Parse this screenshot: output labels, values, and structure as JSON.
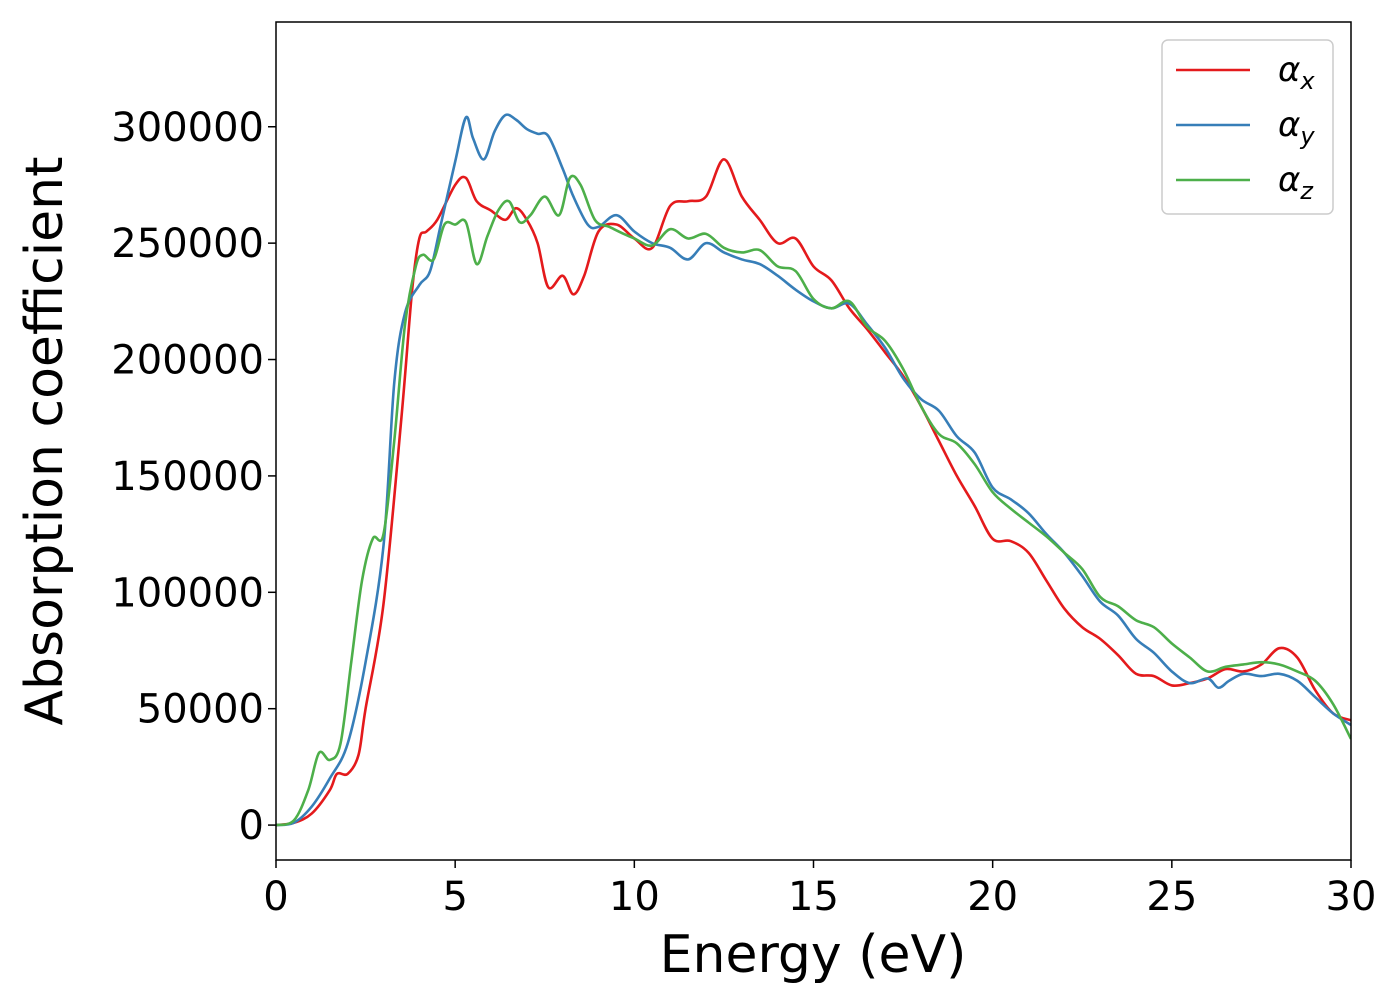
{
  "chart_data": {
    "type": "line",
    "title": "",
    "xlabel": "Energy (eV)",
    "ylabel": "Absorption coefficient",
    "xlim": [
      0,
      30
    ],
    "ylim": [
      -15000,
      345000
    ],
    "x_ticks": [
      0,
      5,
      10,
      15,
      20,
      25,
      30
    ],
    "y_ticks": [
      0,
      50000,
      100000,
      150000,
      200000,
      250000,
      300000
    ],
    "x_tick_labels": [
      "0",
      "5",
      "10",
      "15",
      "20",
      "25",
      "30"
    ],
    "y_tick_labels": [
      "0",
      "50000",
      "100000",
      "150000",
      "200000",
      "250000",
      "300000"
    ],
    "grid": false,
    "legend_position": "top-right",
    "series": [
      {
        "name": "αx",
        "symbol": "α",
        "subscript": "x",
        "color": "#e41a1c",
        "x": [
          0,
          0.5,
          1.0,
          1.5,
          1.7,
          2.0,
          2.3,
          2.5,
          3.0,
          3.5,
          3.8,
          4.0,
          4.2,
          4.5,
          5.0,
          5.3,
          5.6,
          6.0,
          6.4,
          6.7,
          7.0,
          7.3,
          7.6,
          8.0,
          8.3,
          8.6,
          9.0,
          9.5,
          10.0,
          10.5,
          11.0,
          11.5,
          12.0,
          12.5,
          13.0,
          13.5,
          14.0,
          14.5,
          15.0,
          15.5,
          16.0,
          16.5,
          17.0,
          17.5,
          18.0,
          18.5,
          19.0,
          19.5,
          20.0,
          20.5,
          21.0,
          21.5,
          22.0,
          22.5,
          23.0,
          23.5,
          24.0,
          24.5,
          25.0,
          25.5,
          26.0,
          26.5,
          27.0,
          27.5,
          28.0,
          28.5,
          29.0,
          29.5,
          30.0
        ],
        "values": [
          0,
          1000,
          5000,
          15000,
          22000,
          22000,
          30000,
          50000,
          95000,
          175000,
          230000,
          252000,
          255000,
          260000,
          275000,
          278000,
          268000,
          264000,
          260000,
          265000,
          260000,
          250000,
          231000,
          236000,
          228000,
          236000,
          255000,
          258000,
          252000,
          248000,
          266000,
          268000,
          270000,
          286000,
          270000,
          260000,
          250000,
          252000,
          240000,
          234000,
          222000,
          213000,
          203000,
          193000,
          180000,
          165000,
          150000,
          137000,
          123000,
          122000,
          117000,
          105000,
          93000,
          85000,
          80000,
          73000,
          65000,
          64000,
          60000,
          61000,
          63000,
          67000,
          66000,
          69000,
          76000,
          72000,
          58000,
          48000,
          45000
        ]
      },
      {
        "name": "αy",
        "symbol": "α",
        "subscript": "y",
        "color": "#377eb8",
        "x": [
          0,
          0.5,
          1.0,
          1.5,
          2.0,
          2.5,
          3.0,
          3.3,
          3.6,
          4.0,
          4.3,
          4.6,
          5.0,
          5.3,
          5.5,
          5.8,
          6.1,
          6.4,
          6.7,
          7.0,
          7.3,
          7.6,
          8.0,
          8.3,
          8.7,
          9.0,
          9.5,
          10.0,
          10.5,
          11.0,
          11.5,
          12.0,
          12.5,
          13.0,
          13.5,
          14.0,
          14.5,
          15.0,
          15.5,
          16.0,
          16.5,
          17.0,
          17.5,
          18.0,
          18.5,
          19.0,
          19.5,
          20.0,
          20.5,
          21.0,
          21.5,
          22.0,
          22.5,
          23.0,
          23.5,
          24.0,
          24.5,
          25.0,
          25.5,
          26.0,
          26.3,
          26.6,
          27.0,
          27.5,
          28.0,
          28.5,
          29.0,
          29.5,
          30.0
        ],
        "values": [
          0,
          1000,
          8000,
          20000,
          35000,
          70000,
          120000,
          190000,
          220000,
          232000,
          238000,
          258000,
          285000,
          304000,
          295000,
          286000,
          298000,
          305000,
          303000,
          299000,
          297000,
          296000,
          282000,
          270000,
          258000,
          257000,
          262000,
          255000,
          250000,
          248000,
          243000,
          250000,
          246000,
          243000,
          241000,
          236000,
          230000,
          225000,
          222000,
          224000,
          215000,
          205000,
          192000,
          183000,
          178000,
          167000,
          160000,
          145000,
          140000,
          134000,
          125000,
          117000,
          107000,
          96000,
          90000,
          80000,
          74000,
          66000,
          61000,
          63000,
          59000,
          62000,
          65000,
          64000,
          65000,
          62000,
          55000,
          48000,
          43000
        ]
      },
      {
        "name": "αz",
        "symbol": "α",
        "subscript": "z",
        "color": "#4daf4a",
        "x": [
          0,
          0.5,
          0.9,
          1.2,
          1.5,
          1.8,
          2.1,
          2.4,
          2.7,
          3.0,
          3.3,
          3.6,
          3.9,
          4.1,
          4.4,
          4.7,
          5.0,
          5.3,
          5.6,
          5.9,
          6.2,
          6.5,
          6.8,
          7.1,
          7.5,
          7.9,
          8.2,
          8.5,
          8.9,
          9.3,
          9.7,
          10.0,
          10.5,
          11.0,
          11.5,
          12.0,
          12.5,
          13.0,
          13.5,
          14.0,
          14.5,
          15.0,
          15.5,
          16.0,
          16.5,
          17.0,
          17.5,
          18.0,
          18.5,
          19.0,
          19.5,
          20.0,
          20.5,
          21.0,
          21.5,
          22.0,
          22.5,
          23.0,
          23.5,
          24.0,
          24.5,
          25.0,
          25.5,
          26.0,
          26.5,
          27.0,
          27.5,
          28.0,
          28.5,
          29.0,
          29.5,
          30.0
        ],
        "values": [
          0,
          2000,
          15000,
          31000,
          28000,
          35000,
          70000,
          105000,
          123000,
          125000,
          165000,
          215000,
          240000,
          245000,
          243000,
          258000,
          258000,
          259000,
          241000,
          253000,
          264000,
          268000,
          259000,
          262000,
          270000,
          262000,
          278000,
          275000,
          260000,
          257000,
          254000,
          252000,
          249000,
          256000,
          252000,
          254000,
          248000,
          246000,
          247000,
          240000,
          238000,
          226000,
          222000,
          225000,
          214000,
          208000,
          196000,
          180000,
          168000,
          164000,
          155000,
          143000,
          136000,
          130000,
          124000,
          117000,
          110000,
          98000,
          94000,
          88000,
          85000,
          78000,
          72000,
          66000,
          68000,
          69000,
          70000,
          69000,
          66000,
          62000,
          52000,
          37000
        ]
      }
    ]
  }
}
